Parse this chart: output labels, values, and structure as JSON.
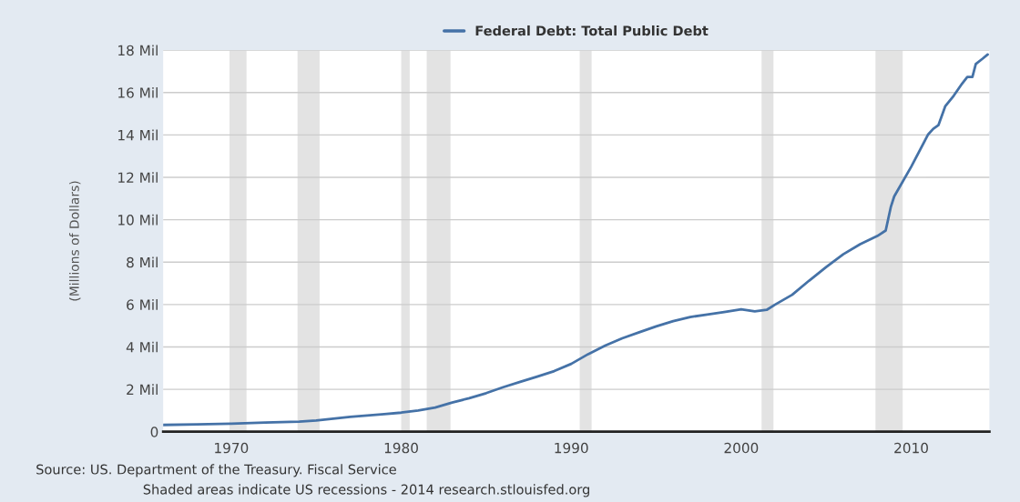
{
  "chart_data": {
    "type": "line",
    "ylabel": "(Millions of Dollars)",
    "x": [
      1966.0,
      1968.0,
      1970.0,
      1972.0,
      1974.0,
      1975.0,
      1977.0,
      1979.0,
      1980.0,
      1981.0,
      1982.0,
      1983.0,
      1984.0,
      1985.0,
      1986.0,
      1987.0,
      1988.0,
      1989.0,
      1990.0,
      1991.0,
      1992.0,
      1993.0,
      1994.0,
      1995.0,
      1996.0,
      1997.0,
      1998.0,
      1999.0,
      2000.0,
      2000.8,
      2001.5,
      2002.0,
      2003.0,
      2004.0,
      2005.0,
      2006.0,
      2007.0,
      2008.0,
      2008.5,
      2008.8,
      2009.0,
      2010.0,
      2011.0,
      2011.3,
      2011.6,
      2012.0,
      2012.5,
      2013.0,
      2013.3,
      2013.6,
      2013.8,
      2014.2,
      2014.5
    ],
    "series": [
      {
        "name": "Federal Debt: Total Public Debt",
        "color": "#4572a7",
        "values": [
          0.32,
          0.35,
          0.38,
          0.43,
          0.48,
          0.53,
          0.7,
          0.83,
          0.9,
          1.0,
          1.14,
          1.38,
          1.58,
          1.82,
          2.1,
          2.35,
          2.6,
          2.86,
          3.2,
          3.66,
          4.06,
          4.41,
          4.69,
          4.97,
          5.22,
          5.41,
          5.53,
          5.65,
          5.78,
          5.68,
          5.75,
          6.0,
          6.46,
          7.13,
          7.77,
          8.37,
          8.85,
          9.23,
          9.49,
          10.6,
          11.1,
          12.5,
          14.03,
          14.29,
          14.46,
          15.35,
          15.85,
          16.43,
          16.74,
          16.74,
          17.35,
          17.6,
          17.8
        ]
      }
    ],
    "xlim": [
      1966.0,
      2014.6
    ],
    "xticks": [
      1970,
      1980,
      1990,
      2000,
      2010
    ],
    "ylim": [
      0,
      18
    ],
    "yticks": [
      0,
      {
        "value": 2,
        "label": "2 Mil"
      },
      {
        "value": 4,
        "label": "4 Mil"
      },
      {
        "value": 6,
        "label": "6 Mil"
      },
      {
        "value": 8,
        "label": "8 Mil"
      },
      {
        "value": 10,
        "label": "10 Mil"
      },
      {
        "value": 12,
        "label": "12 Mil"
      },
      {
        "value": 14,
        "label": "14 Mil"
      },
      {
        "value": 16,
        "label": "16 Mil"
      },
      {
        "value": 18,
        "label": "18 Mil"
      }
    ],
    "bands": [
      {
        "axis": "x",
        "from": 1969.9,
        "to": 1970.9,
        "color": "#e3e3e3"
      },
      {
        "axis": "x",
        "from": 1973.9,
        "to": 1975.2,
        "color": "#e3e3e3"
      },
      {
        "axis": "x",
        "from": 1980.0,
        "to": 1980.5,
        "color": "#e3e3e3"
      },
      {
        "axis": "x",
        "from": 1981.5,
        "to": 1982.9,
        "color": "#e3e3e3"
      },
      {
        "axis": "x",
        "from": 1990.5,
        "to": 1991.2,
        "color": "#e3e3e3"
      },
      {
        "axis": "x",
        "from": 2001.2,
        "to": 2001.9,
        "color": "#e3e3e3"
      },
      {
        "axis": "x",
        "from": 2007.9,
        "to": 2009.5,
        "color": "#e3e3e3"
      }
    ],
    "grid": "y",
    "legend": "top",
    "line_style": "solid",
    "marker": "none",
    "annotations": [
      "Source: US. Department of the Treasury. Fiscal Service",
      "Shaded areas indicate US recessions - 2014 research.stlouisfed.org"
    ]
  }
}
